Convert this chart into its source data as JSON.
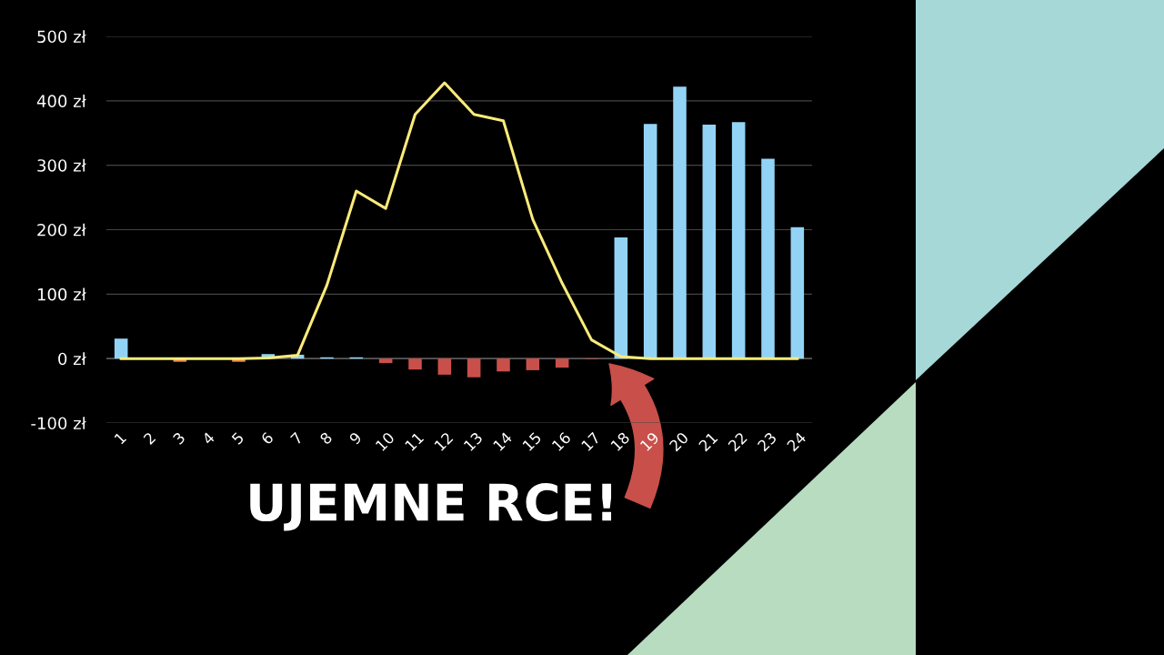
{
  "chart_data": {
    "type": "bar",
    "categories": [
      "1",
      "2",
      "3",
      "4",
      "5",
      "6",
      "7",
      "8",
      "9",
      "10",
      "11",
      "12",
      "13",
      "14",
      "15",
      "16",
      "17",
      "18",
      "19",
      "20",
      "21",
      "22",
      "23",
      "24"
    ],
    "series": [
      {
        "values": [
          31,
          0,
          -5,
          0,
          -5,
          7,
          6,
          2,
          2,
          -7,
          -17,
          -25,
          -29,
          -20,
          -18,
          -14,
          -1,
          188,
          364,
          422,
          363,
          367,
          310,
          204
        ],
        "colors": [
          "#92d3f5",
          "#92d3f5",
          "#e8894a",
          "#92d3f5",
          "#e8894a",
          "#92d3f5",
          "#92d3f5",
          "#92d3f5",
          "#92d3f5",
          "#c9504a",
          "#c9504a",
          "#c9504a",
          "#c9504a",
          "#c9504a",
          "#c9504a",
          "#c9504a",
          "#c9504a",
          "#92d3f5",
          "#92d3f5",
          "#92d3f5",
          "#92d3f5",
          "#92d3f5",
          "#92d3f5",
          "#92d3f5"
        ]
      },
      {
        "type": "line",
        "color": "#fbeb7a",
        "values": [
          0,
          0,
          0,
          0,
          0,
          1,
          5,
          114,
          260,
          233,
          379,
          428,
          379,
          369,
          216,
          117,
          29,
          3,
          0,
          0,
          0,
          0,
          0,
          0
        ]
      }
    ],
    "ylim": [
      -100,
      500
    ],
    "yticks": [
      {
        "value": -100,
        "label": "-100 zł"
      },
      {
        "value": 0,
        "label": "0 zł"
      },
      {
        "value": 100,
        "label": "100 zł"
      },
      {
        "value": 200,
        "label": "200 zł"
      },
      {
        "value": 300,
        "label": "300 zł"
      },
      {
        "value": 400,
        "label": "400 zł"
      },
      {
        "value": 500,
        "label": "500 zł"
      }
    ],
    "grid": "y",
    "annotations": [
      "UJEMNE RCE!"
    ]
  }
}
